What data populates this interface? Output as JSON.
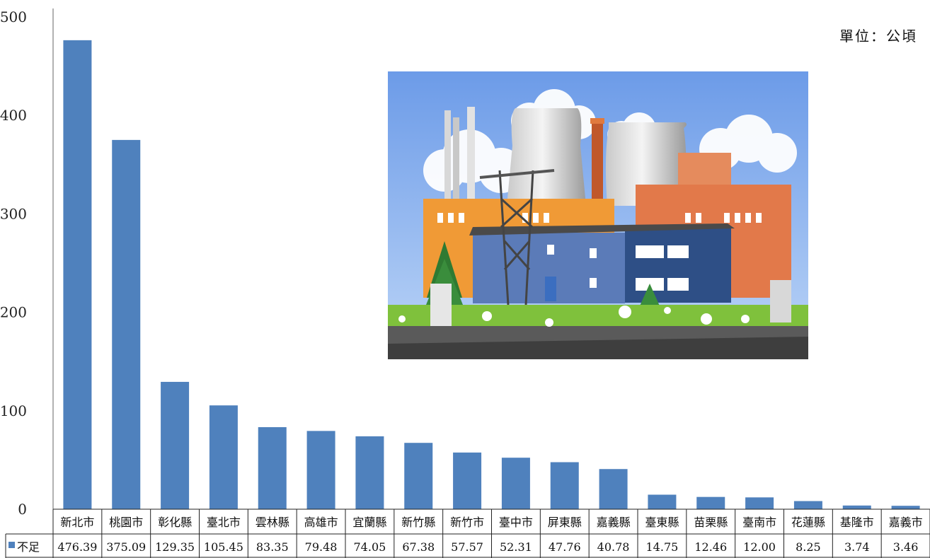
{
  "chart_data": {
    "type": "bar",
    "title": "",
    "unit_label": "單位：公頃",
    "categories": [
      "新北市",
      "桃園市",
      "彰化縣",
      "臺北市",
      "雲林縣",
      "高雄市",
      "宜蘭縣",
      "新竹縣",
      "新竹市",
      "臺中市",
      "屏東縣",
      "嘉義縣",
      "臺東縣",
      "苗栗縣",
      "臺南市",
      "花蓮縣",
      "基隆市",
      "嘉義市"
    ],
    "series": [
      {
        "name": "不足",
        "color": "#4f81bd",
        "values": [
          476.39,
          375.09,
          129.35,
          105.45,
          83.35,
          79.48,
          74.05,
          67.38,
          57.57,
          52.31,
          47.76,
          40.78,
          14.75,
          12.46,
          12.0,
          8.25,
          3.74,
          3.46
        ],
        "labels": [
          "476.39",
          "375.09",
          "129.35",
          "105.45",
          "83.35",
          "79.48",
          "74.05",
          "67.38",
          "57.57",
          "52.31",
          "47.76",
          "40.78",
          "14.75",
          "12.46",
          "12.00",
          "8.25",
          "3.74",
          "3.46"
        ]
      }
    ],
    "yticks": [
      "0",
      "100",
      "200",
      "300",
      "400",
      "500"
    ],
    "ylim": [
      0,
      500
    ],
    "grid": false,
    "legend": "data-table-left",
    "decoration": "factory-illustration"
  }
}
